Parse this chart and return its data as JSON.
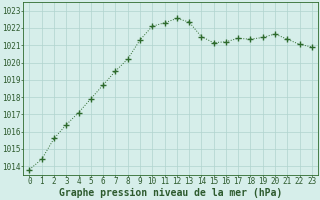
{
  "x": [
    0,
    1,
    2,
    3,
    4,
    5,
    6,
    7,
    8,
    9,
    10,
    11,
    12,
    13,
    14,
    15,
    16,
    17,
    18,
    19,
    20,
    21,
    22,
    23
  ],
  "y": [
    1013.8,
    1014.4,
    1015.6,
    1016.4,
    1017.1,
    1017.9,
    1018.7,
    1019.5,
    1020.2,
    1021.3,
    1022.1,
    1022.3,
    1022.55,
    1022.35,
    1021.5,
    1021.15,
    1021.2,
    1021.4,
    1021.35,
    1021.45,
    1021.65,
    1021.35,
    1021.05,
    1020.9
  ],
  "line_color": "#2d6a2d",
  "marker": "+",
  "marker_size": 4,
  "bg_color": "#d6eeea",
  "grid_color": "#b0d4ce",
  "xlabel": "Graphe pression niveau de la mer (hPa)",
  "xlabel_fontsize": 7,
  "xlabel_color": "#2d5a2d",
  "tick_color": "#2d5a2d",
  "tick_fontsize": 5.5,
  "ylim": [
    1013.5,
    1023.5
  ],
  "yticks": [
    1014,
    1015,
    1016,
    1017,
    1018,
    1019,
    1020,
    1021,
    1022,
    1023
  ],
  "xlim": [
    -0.5,
    23.5
  ],
  "xticks": [
    0,
    1,
    2,
    3,
    4,
    5,
    6,
    7,
    8,
    9,
    10,
    11,
    12,
    13,
    14,
    15,
    16,
    17,
    18,
    19,
    20,
    21,
    22,
    23
  ]
}
